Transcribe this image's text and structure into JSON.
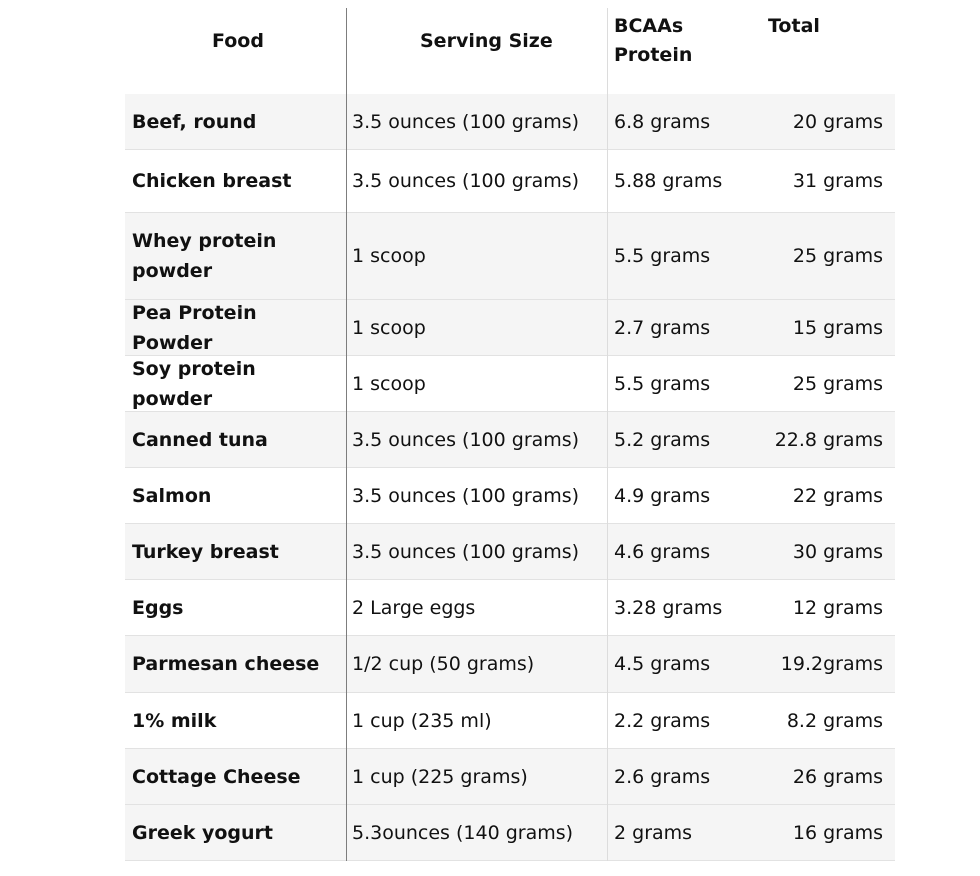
{
  "table": {
    "headers": {
      "food": "Food",
      "serving_size": "Serving Size",
      "bcaas_line1": "BCAAs",
      "bcaas_line2": "Protein",
      "total": "Total"
    },
    "rows": [
      {
        "food": "Beef, round",
        "serving": "3.5 ounces (100 grams)",
        "bcaas": "6.8 grams",
        "total": "20 grams"
      },
      {
        "food": "Chicken breast",
        "serving": "3.5 ounces (100 grams)",
        "bcaas": "5.88 grams",
        "total": "31 grams"
      },
      {
        "food": "Whey protein powder",
        "serving": "1 scoop",
        "bcaas": "5.5 grams",
        "total": "25 grams"
      },
      {
        "food": "Pea Protein Powder",
        "serving": "1 scoop",
        "bcaas": "2.7 grams",
        "total": "15 grams"
      },
      {
        "food": "Soy protein powder",
        "serving": "1 scoop",
        "bcaas": "5.5 grams",
        "total": "25 grams"
      },
      {
        "food": "Canned tuna",
        "serving": "3.5 ounces (100 grams)",
        "bcaas": "5.2 grams",
        "total": "22.8 grams"
      },
      {
        "food": "Salmon",
        "serving": "3.5 ounces (100 grams)",
        "bcaas": "4.9 grams",
        "total": "22 grams"
      },
      {
        "food": "Turkey breast",
        "serving": "3.5 ounces (100 grams)",
        "bcaas": "4.6 grams",
        "total": "30 grams"
      },
      {
        "food": "Eggs",
        "serving": "2 Large eggs",
        "bcaas": "3.28 grams",
        "total": "12 grams"
      },
      {
        "food": "Parmesan cheese",
        "serving": "1/2 cup (50 grams)",
        "bcaas": "4.5 grams",
        "total": "19.2grams"
      },
      {
        "food": "1% milk",
        "serving": "1 cup (235 ml)",
        "bcaas": "2.2 grams",
        "total": "8.2 grams"
      },
      {
        "food": "Cottage Cheese",
        "serving": "1 cup (225 grams)",
        "bcaas": "2.6 grams",
        "total": "26 grams"
      },
      {
        "food": "Greek yogurt",
        "serving": "5.3ounces (140 grams)",
        "bcaas": "2 grams",
        "total": "16 grams"
      }
    ]
  },
  "colors": {
    "row_shade": "#f5f5f5",
    "text": "#111111",
    "grid_strong": "#7d7d7d",
    "grid_light": "#dcdcdc"
  }
}
